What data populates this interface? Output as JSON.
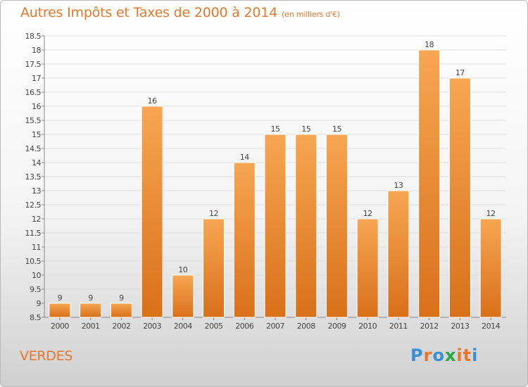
{
  "title": "Autres Impôts et Taxes de 2000 à 2014",
  "subtitle": "(en milliers d'€)",
  "commune": "VERDES",
  "logo": {
    "letters": [
      "P",
      "r",
      "o",
      "x",
      "i",
      "t",
      "i"
    ],
    "colors": [
      "#3a8fd6",
      "#e8772a",
      "#3a8fd6",
      "#2aa642",
      "#e8772a",
      "#e8772a",
      "#3a8fd6"
    ]
  },
  "colors": {
    "bar_light": "#f7a652",
    "bar_dark": "#d9701a",
    "text": "#444444",
    "accent": "#e8772a"
  },
  "chart_data": {
    "type": "bar",
    "categories": [
      "2000",
      "2001",
      "2002",
      "2003",
      "2004",
      "2005",
      "2006",
      "2007",
      "2008",
      "2009",
      "2010",
      "2011",
      "2012",
      "2013",
      "2014"
    ],
    "values": [
      9,
      9,
      9,
      16,
      10,
      12,
      14,
      15,
      15,
      15,
      12,
      13,
      18,
      17,
      12
    ],
    "data_labels": [
      "9",
      "9",
      "9",
      "16",
      "10",
      "12",
      "14",
      "15",
      "15",
      "15",
      "12",
      "13",
      "18",
      "17",
      "12"
    ],
    "title": "Autres Impôts et Taxes de 2000 à 2014",
    "xlabel": "",
    "ylabel": "",
    "ylim": [
      8.5,
      18.5
    ],
    "yticks": [
      8.5,
      9,
      9.5,
      10,
      10.5,
      11,
      11.5,
      12,
      12.5,
      13,
      13.5,
      14,
      14.5,
      15,
      15.5,
      16,
      16.5,
      17,
      17.5,
      18,
      18.5
    ],
    "ytick_labels": [
      "8.5",
      "9",
      "9.5",
      "10",
      "10.5",
      "11",
      "11.5",
      "12",
      "12.5",
      "13",
      "13.5",
      "14",
      "14.5",
      "15",
      "15.5",
      "16",
      "16.5",
      "17",
      "17.5",
      "18",
      "18.5"
    ],
    "grid": true,
    "legend": "none"
  }
}
